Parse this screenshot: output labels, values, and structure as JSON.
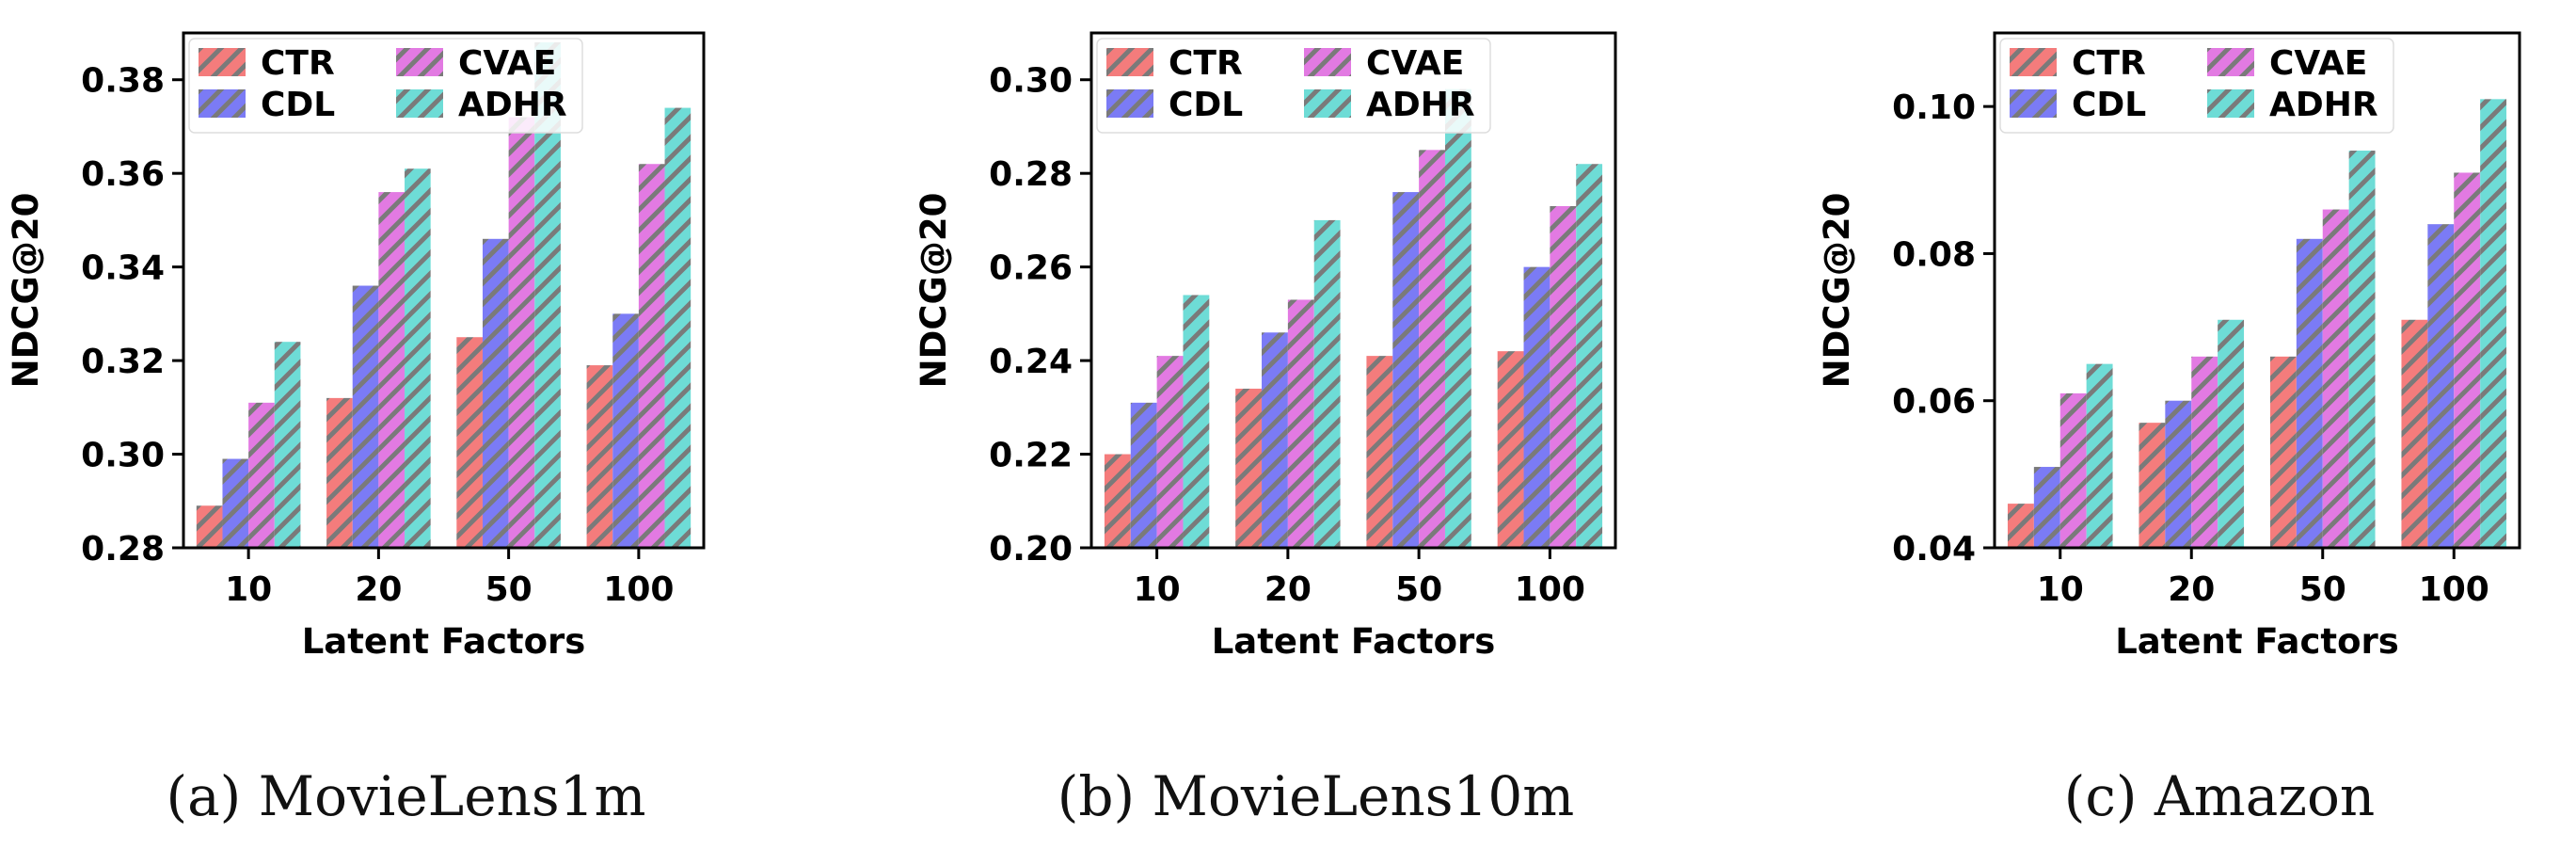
{
  "figure": {
    "captions": [
      "(a)  MovieLens1m",
      "(b)  MovieLens10m",
      "(c)  Amazon"
    ]
  },
  "series_styles": [
    {
      "name": "CTR",
      "color": "#f47c7c"
    },
    {
      "name": "CDL",
      "color": "#7b7bf5"
    },
    {
      "name": "CVAE",
      "color": "#e27ae2"
    },
    {
      "name": "ADHR",
      "color": "#6edcd6"
    }
  ],
  "hatch_color": "#7a7a7a",
  "chart_data": [
    {
      "type": "bar",
      "title": "",
      "caption": "(a)  MovieLens1m",
      "xlabel": "Latent Factors",
      "ylabel": "NDCG@20",
      "categories": [
        "10",
        "20",
        "50",
        "100"
      ],
      "ylim": [
        0.28,
        0.39
      ],
      "yticks": [
        "0.28",
        "0.30",
        "0.32",
        "0.34",
        "0.36",
        "0.38"
      ],
      "legend": "top-left",
      "series": [
        {
          "name": "CTR",
          "values": [
            0.289,
            0.312,
            0.325,
            0.319
          ]
        },
        {
          "name": "CDL",
          "values": [
            0.299,
            0.336,
            0.346,
            0.33
          ]
        },
        {
          "name": "CVAE",
          "values": [
            0.311,
            0.356,
            0.372,
            0.362
          ]
        },
        {
          "name": "ADHR",
          "values": [
            0.324,
            0.361,
            0.388,
            0.374
          ]
        }
      ]
    },
    {
      "type": "bar",
      "title": "",
      "caption": "(b)  MovieLens10m",
      "xlabel": "Latent Factors",
      "ylabel": "NDCG@20",
      "categories": [
        "10",
        "20",
        "50",
        "100"
      ],
      "ylim": [
        0.2,
        0.31
      ],
      "yticks": [
        "0.20",
        "0.22",
        "0.24",
        "0.26",
        "0.28",
        "0.30"
      ],
      "legend": "top-left",
      "series": [
        {
          "name": "CTR",
          "values": [
            0.22,
            0.234,
            0.241,
            0.242
          ]
        },
        {
          "name": "CDL",
          "values": [
            0.231,
            0.246,
            0.276,
            0.26
          ]
        },
        {
          "name": "CVAE",
          "values": [
            0.241,
            0.253,
            0.285,
            0.273
          ]
        },
        {
          "name": "ADHR",
          "values": [
            0.254,
            0.27,
            0.298,
            0.282
          ]
        }
      ]
    },
    {
      "type": "bar",
      "title": "",
      "caption": "(c)  Amazon",
      "xlabel": "Latent Factors",
      "ylabel": "NDCG@20",
      "categories": [
        "10",
        "20",
        "50",
        "100"
      ],
      "ylim": [
        0.04,
        0.11
      ],
      "yticks": [
        "0.04",
        "0.06",
        "0.08",
        "0.10"
      ],
      "legend": "top-left",
      "series": [
        {
          "name": "CTR",
          "values": [
            0.046,
            0.057,
            0.066,
            0.071
          ]
        },
        {
          "name": "CDL",
          "values": [
            0.051,
            0.06,
            0.082,
            0.084
          ]
        },
        {
          "name": "CVAE",
          "values": [
            0.061,
            0.066,
            0.086,
            0.091
          ]
        },
        {
          "name": "ADHR",
          "values": [
            0.065,
            0.071,
            0.094,
            0.101
          ]
        }
      ]
    }
  ]
}
